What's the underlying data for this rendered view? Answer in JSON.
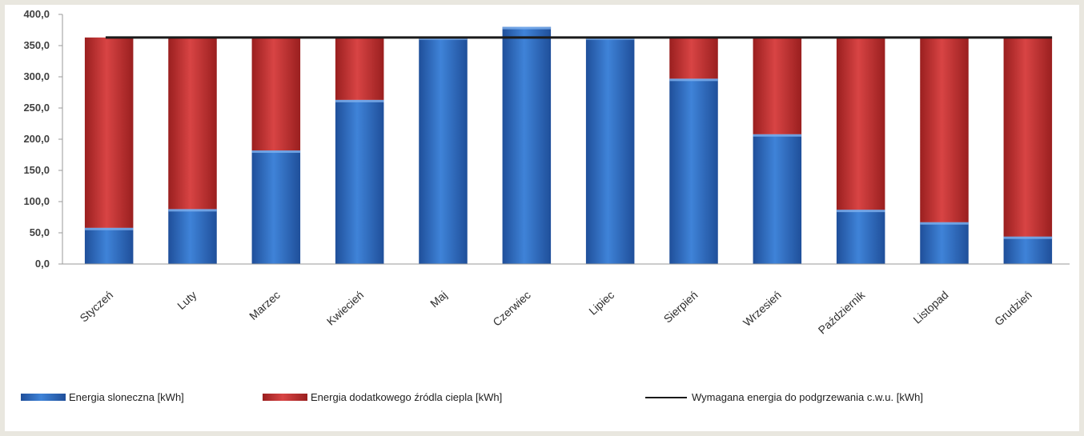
{
  "chart_data": {
    "type": "bar",
    "stacked": true,
    "categories": [
      "Styczeń",
      "Luty",
      "Marzec",
      "Kwiecień",
      "Maj",
      "Czerwiec",
      "Lipiec",
      "Sierpień",
      "Wrzesień",
      "Październik",
      "Listopad",
      "Grudzień"
    ],
    "series": [
      {
        "name": "Energia sloneczna [kWh]",
        "type": "bar",
        "color": "#2f6fc5",
        "values": [
          58,
          88,
          182,
          263,
          363,
          380,
          363,
          297,
          208,
          87,
          67,
          44
        ]
      },
      {
        "name": "Energia dodatkowego źródla ciepla [kWh]",
        "type": "bar",
        "color": "#c83232",
        "values": [
          305,
          275,
          181,
          100,
          0,
          0,
          0,
          66,
          155,
          276,
          296,
          319
        ]
      },
      {
        "name": "Wymagana energia do podgrzewania c.w.u. [kWh]",
        "type": "line",
        "color": "#1a1a1a",
        "values": [
          363,
          363,
          363,
          363,
          363,
          363,
          363,
          363,
          363,
          363,
          363,
          363
        ]
      }
    ],
    "yticks": [
      "0,0",
      "50,0",
      "100,0",
      "150,0",
      "200,0",
      "250,0",
      "300,0",
      "350,0",
      "400,0"
    ],
    "ylim": [
      0,
      400
    ],
    "grid": false,
    "legend_position": "bottom"
  }
}
